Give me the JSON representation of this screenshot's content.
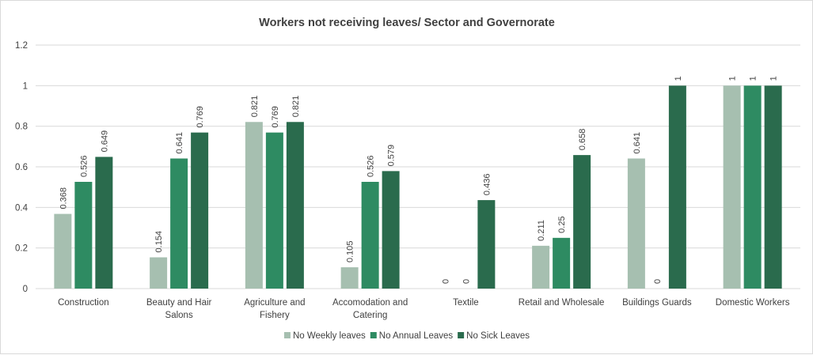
{
  "chart_data": {
    "type": "bar",
    "title": "Workers not receiving leaves/ Sector and Governorate",
    "xlabel": "",
    "ylabel": "",
    "ylim": [
      0,
      1.2
    ],
    "y_ticks": [
      "0",
      "0.2",
      "0.4",
      "0.6",
      "0.8",
      "1",
      "1.2"
    ],
    "y_tick_values": [
      0,
      0.2,
      0.4,
      0.6,
      0.8,
      1,
      1.2
    ],
    "grid": true,
    "legend_position": "bottom",
    "categories": [
      [
        "Construction"
      ],
      [
        "Beauty and Hair",
        "Salons"
      ],
      [
        "Agriculture and",
        "Fishery"
      ],
      [
        "Accomodation and",
        "Catering"
      ],
      [
        "Textile"
      ],
      [
        "Retail and Wholesale"
      ],
      [
        "Buildings Guards"
      ],
      [
        "Domestic Workers"
      ]
    ],
    "series": [
      {
        "name": "No Weekly leaves",
        "color": "#a6bfb0",
        "values": [
          0.368,
          0.154,
          0.821,
          0.105,
          0,
          0.211,
          0.641,
          1
        ],
        "labels": [
          "0.368",
          "0.154",
          "0.821",
          "0.105",
          "0",
          "0.211",
          "0.641",
          "1"
        ]
      },
      {
        "name": "No Annual Leaves",
        "color": "#2e8b62",
        "values": [
          0.526,
          0.641,
          0.769,
          0.526,
          0,
          0.25,
          0,
          1
        ],
        "labels": [
          "0.526",
          "0.641",
          "0.769",
          "0.526",
          "0",
          "0.25",
          "0",
          "1"
        ]
      },
      {
        "name": "No Sick Leaves",
        "color": "#2a6b4d",
        "values": [
          0.649,
          0.769,
          0.821,
          0.579,
          0.436,
          0.658,
          1,
          1
        ],
        "labels": [
          "0.649",
          "0.769",
          "0.821",
          "0.579",
          "0.436",
          "0.658",
          "1",
          "1"
        ]
      }
    ]
  }
}
